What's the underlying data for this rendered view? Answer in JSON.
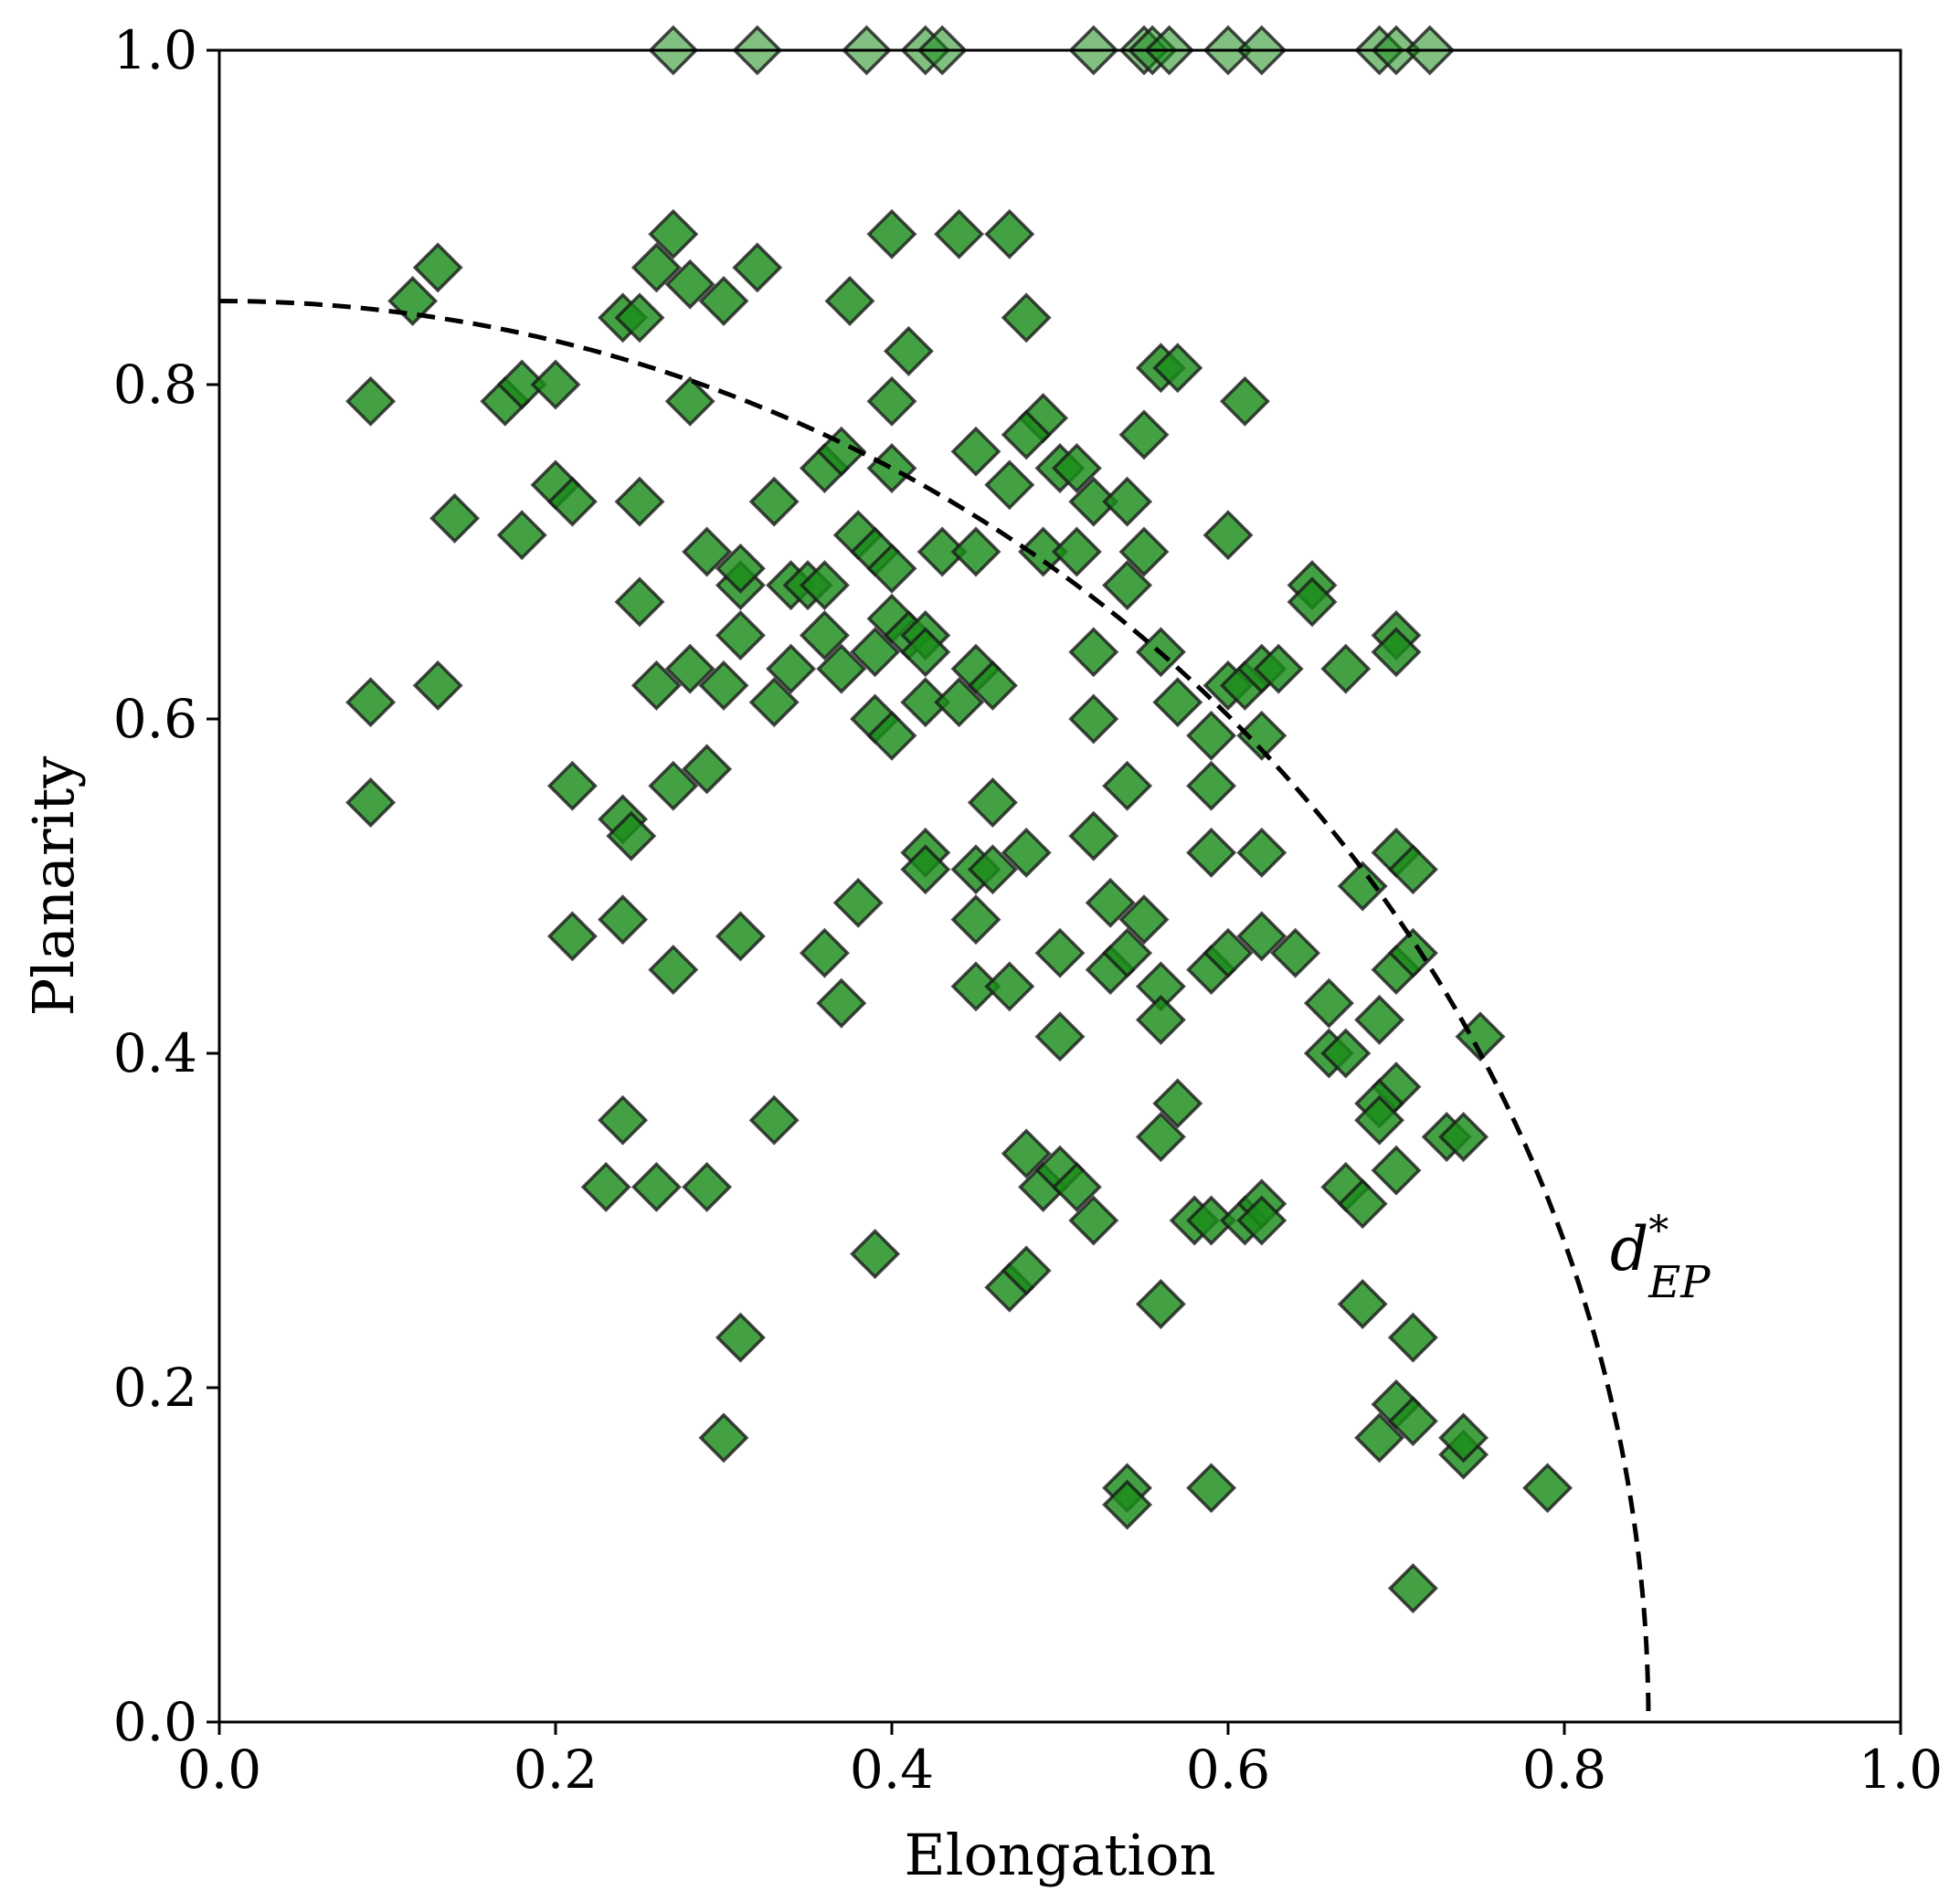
{
  "chart_data": {
    "type": "scatter",
    "title": "",
    "xlabel": "Elongation",
    "ylabel": "Planarity",
    "xlim": [
      0.0,
      1.0
    ],
    "ylim": [
      0.0,
      1.0
    ],
    "xticks": [
      "0.0",
      "0.2",
      "0.4",
      "0.6",
      "0.8",
      "1.0"
    ],
    "yticks": [
      "0.0",
      "0.2",
      "0.4",
      "0.6",
      "0.8",
      "1.0"
    ],
    "grid": false,
    "marker": "diamond",
    "marker_color": "#1a8c1a",
    "marker_edge_color": "#1a1a1a",
    "curve": {
      "style": "dashed",
      "color": "#000000",
      "label": "d*_EP",
      "label_main": "d",
      "label_sup": "*",
      "label_sub": "EP",
      "radius": 0.85
    },
    "points": [
      [
        0.27,
        1.0
      ],
      [
        0.32,
        1.0
      ],
      [
        0.385,
        1.0
      ],
      [
        0.42,
        1.0
      ],
      [
        0.43,
        1.0
      ],
      [
        0.52,
        1.0
      ],
      [
        0.55,
        1.0
      ],
      [
        0.555,
        1.0
      ],
      [
        0.565,
        1.0
      ],
      [
        0.6,
        1.0
      ],
      [
        0.62,
        1.0
      ],
      [
        0.69,
        1.0
      ],
      [
        0.7,
        1.0
      ],
      [
        0.72,
        1.0
      ],
      [
        0.27,
        0.89
      ],
      [
        0.4,
        0.89
      ],
      [
        0.44,
        0.89
      ],
      [
        0.47,
        0.89
      ],
      [
        0.13,
        0.87
      ],
      [
        0.26,
        0.87
      ],
      [
        0.32,
        0.87
      ],
      [
        0.28,
        0.86
      ],
      [
        0.3,
        0.85
      ],
      [
        0.24,
        0.84
      ],
      [
        0.115,
        0.85
      ],
      [
        0.25,
        0.84
      ],
      [
        0.375,
        0.85
      ],
      [
        0.48,
        0.84
      ],
      [
        0.09,
        0.79
      ],
      [
        0.17,
        0.79
      ],
      [
        0.18,
        0.8
      ],
      [
        0.2,
        0.8
      ],
      [
        0.28,
        0.79
      ],
      [
        0.41,
        0.82
      ],
      [
        0.4,
        0.79
      ],
      [
        0.56,
        0.81
      ],
      [
        0.57,
        0.81
      ],
      [
        0.61,
        0.79
      ],
      [
        0.49,
        0.78
      ],
      [
        0.2,
        0.74
      ],
      [
        0.21,
        0.73
      ],
      [
        0.25,
        0.73
      ],
      [
        0.36,
        0.75
      ],
      [
        0.37,
        0.76
      ],
      [
        0.4,
        0.75
      ],
      [
        0.45,
        0.76
      ],
      [
        0.47,
        0.74
      ],
      [
        0.48,
        0.77
      ],
      [
        0.5,
        0.75
      ],
      [
        0.51,
        0.75
      ],
      [
        0.52,
        0.73
      ],
      [
        0.55,
        0.77
      ],
      [
        0.54,
        0.73
      ],
      [
        0.14,
        0.72
      ],
      [
        0.18,
        0.71
      ],
      [
        0.29,
        0.7
      ],
      [
        0.33,
        0.73
      ],
      [
        0.38,
        0.71
      ],
      [
        0.39,
        0.7
      ],
      [
        0.4,
        0.69
      ],
      [
        0.43,
        0.7
      ],
      [
        0.45,
        0.7
      ],
      [
        0.49,
        0.7
      ],
      [
        0.51,
        0.7
      ],
      [
        0.55,
        0.7
      ],
      [
        0.54,
        0.68
      ],
      [
        0.6,
        0.71
      ],
      [
        0.25,
        0.67
      ],
      [
        0.31,
        0.68
      ],
      [
        0.31,
        0.69
      ],
      [
        0.34,
        0.68
      ],
      [
        0.35,
        0.68
      ],
      [
        0.36,
        0.68
      ],
      [
        0.4,
        0.66
      ],
      [
        0.41,
        0.65
      ],
      [
        0.42,
        0.65
      ],
      [
        0.42,
        0.64
      ],
      [
        0.65,
        0.68
      ],
      [
        0.65,
        0.67
      ],
      [
        0.7,
        0.65
      ],
      [
        0.7,
        0.64
      ],
      [
        0.28,
        0.63
      ],
      [
        0.31,
        0.65
      ],
      [
        0.34,
        0.63
      ],
      [
        0.36,
        0.65
      ],
      [
        0.37,
        0.63
      ],
      [
        0.39,
        0.64
      ],
      [
        0.45,
        0.63
      ],
      [
        0.46,
        0.62
      ],
      [
        0.52,
        0.64
      ],
      [
        0.56,
        0.64
      ],
      [
        0.6,
        0.62
      ],
      [
        0.61,
        0.62
      ],
      [
        0.62,
        0.63
      ],
      [
        0.63,
        0.63
      ],
      [
        0.67,
        0.63
      ],
      [
        0.09,
        0.61
      ],
      [
        0.13,
        0.62
      ],
      [
        0.26,
        0.62
      ],
      [
        0.3,
        0.62
      ],
      [
        0.33,
        0.61
      ],
      [
        0.39,
        0.6
      ],
      [
        0.4,
        0.59
      ],
      [
        0.42,
        0.61
      ],
      [
        0.44,
        0.61
      ],
      [
        0.52,
        0.6
      ],
      [
        0.57,
        0.61
      ],
      [
        0.59,
        0.59
      ],
      [
        0.62,
        0.59
      ],
      [
        0.21,
        0.56
      ],
      [
        0.24,
        0.54
      ],
      [
        0.27,
        0.56
      ],
      [
        0.29,
        0.57
      ],
      [
        0.46,
        0.55
      ],
      [
        0.52,
        0.53
      ],
      [
        0.54,
        0.56
      ],
      [
        0.59,
        0.56
      ],
      [
        0.59,
        0.52
      ],
      [
        0.09,
        0.55
      ],
      [
        0.245,
        0.53
      ],
      [
        0.42,
        0.52
      ],
      [
        0.42,
        0.51
      ],
      [
        0.45,
        0.51
      ],
      [
        0.46,
        0.51
      ],
      [
        0.48,
        0.52
      ],
      [
        0.53,
        0.49
      ],
      [
        0.55,
        0.48
      ],
      [
        0.62,
        0.52
      ],
      [
        0.68,
        0.5
      ],
      [
        0.7,
        0.52
      ],
      [
        0.71,
        0.51
      ],
      [
        0.21,
        0.47
      ],
      [
        0.24,
        0.48
      ],
      [
        0.27,
        0.45
      ],
      [
        0.31,
        0.47
      ],
      [
        0.36,
        0.46
      ],
      [
        0.38,
        0.49
      ],
      [
        0.45,
        0.48
      ],
      [
        0.5,
        0.46
      ],
      [
        0.53,
        0.45
      ],
      [
        0.54,
        0.46
      ],
      [
        0.56,
        0.44
      ],
      [
        0.59,
        0.45
      ],
      [
        0.6,
        0.46
      ],
      [
        0.62,
        0.47
      ],
      [
        0.64,
        0.46
      ],
      [
        0.7,
        0.45
      ],
      [
        0.71,
        0.46
      ],
      [
        0.37,
        0.43
      ],
      [
        0.45,
        0.44
      ],
      [
        0.47,
        0.44
      ],
      [
        0.5,
        0.41
      ],
      [
        0.56,
        0.42
      ],
      [
        0.66,
        0.43
      ],
      [
        0.66,
        0.4
      ],
      [
        0.67,
        0.4
      ],
      [
        0.69,
        0.42
      ],
      [
        0.7,
        0.38
      ],
      [
        0.75,
        0.41
      ],
      [
        0.24,
        0.36
      ],
      [
        0.33,
        0.36
      ],
      [
        0.56,
        0.35
      ],
      [
        0.57,
        0.37
      ],
      [
        0.69,
        0.37
      ],
      [
        0.69,
        0.36
      ],
      [
        0.73,
        0.35
      ],
      [
        0.74,
        0.35
      ],
      [
        0.23,
        0.32
      ],
      [
        0.26,
        0.32
      ],
      [
        0.29,
        0.32
      ],
      [
        0.48,
        0.34
      ],
      [
        0.49,
        0.32
      ],
      [
        0.5,
        0.33
      ],
      [
        0.51,
        0.32
      ],
      [
        0.52,
        0.3
      ],
      [
        0.58,
        0.3
      ],
      [
        0.59,
        0.3
      ],
      [
        0.61,
        0.3
      ],
      [
        0.62,
        0.31
      ],
      [
        0.62,
        0.3
      ],
      [
        0.67,
        0.32
      ],
      [
        0.68,
        0.31
      ],
      [
        0.7,
        0.33
      ],
      [
        0.31,
        0.23
      ],
      [
        0.39,
        0.28
      ],
      [
        0.47,
        0.26
      ],
      [
        0.48,
        0.27
      ],
      [
        0.56,
        0.25
      ],
      [
        0.68,
        0.25
      ],
      [
        0.71,
        0.23
      ],
      [
        0.3,
        0.17
      ],
      [
        0.54,
        0.14
      ],
      [
        0.54,
        0.13
      ],
      [
        0.59,
        0.14
      ],
      [
        0.69,
        0.17
      ],
      [
        0.7,
        0.19
      ],
      [
        0.71,
        0.18
      ],
      [
        0.74,
        0.16
      ],
      [
        0.74,
        0.17
      ],
      [
        0.79,
        0.14
      ],
      [
        0.71,
        0.08
      ]
    ]
  }
}
